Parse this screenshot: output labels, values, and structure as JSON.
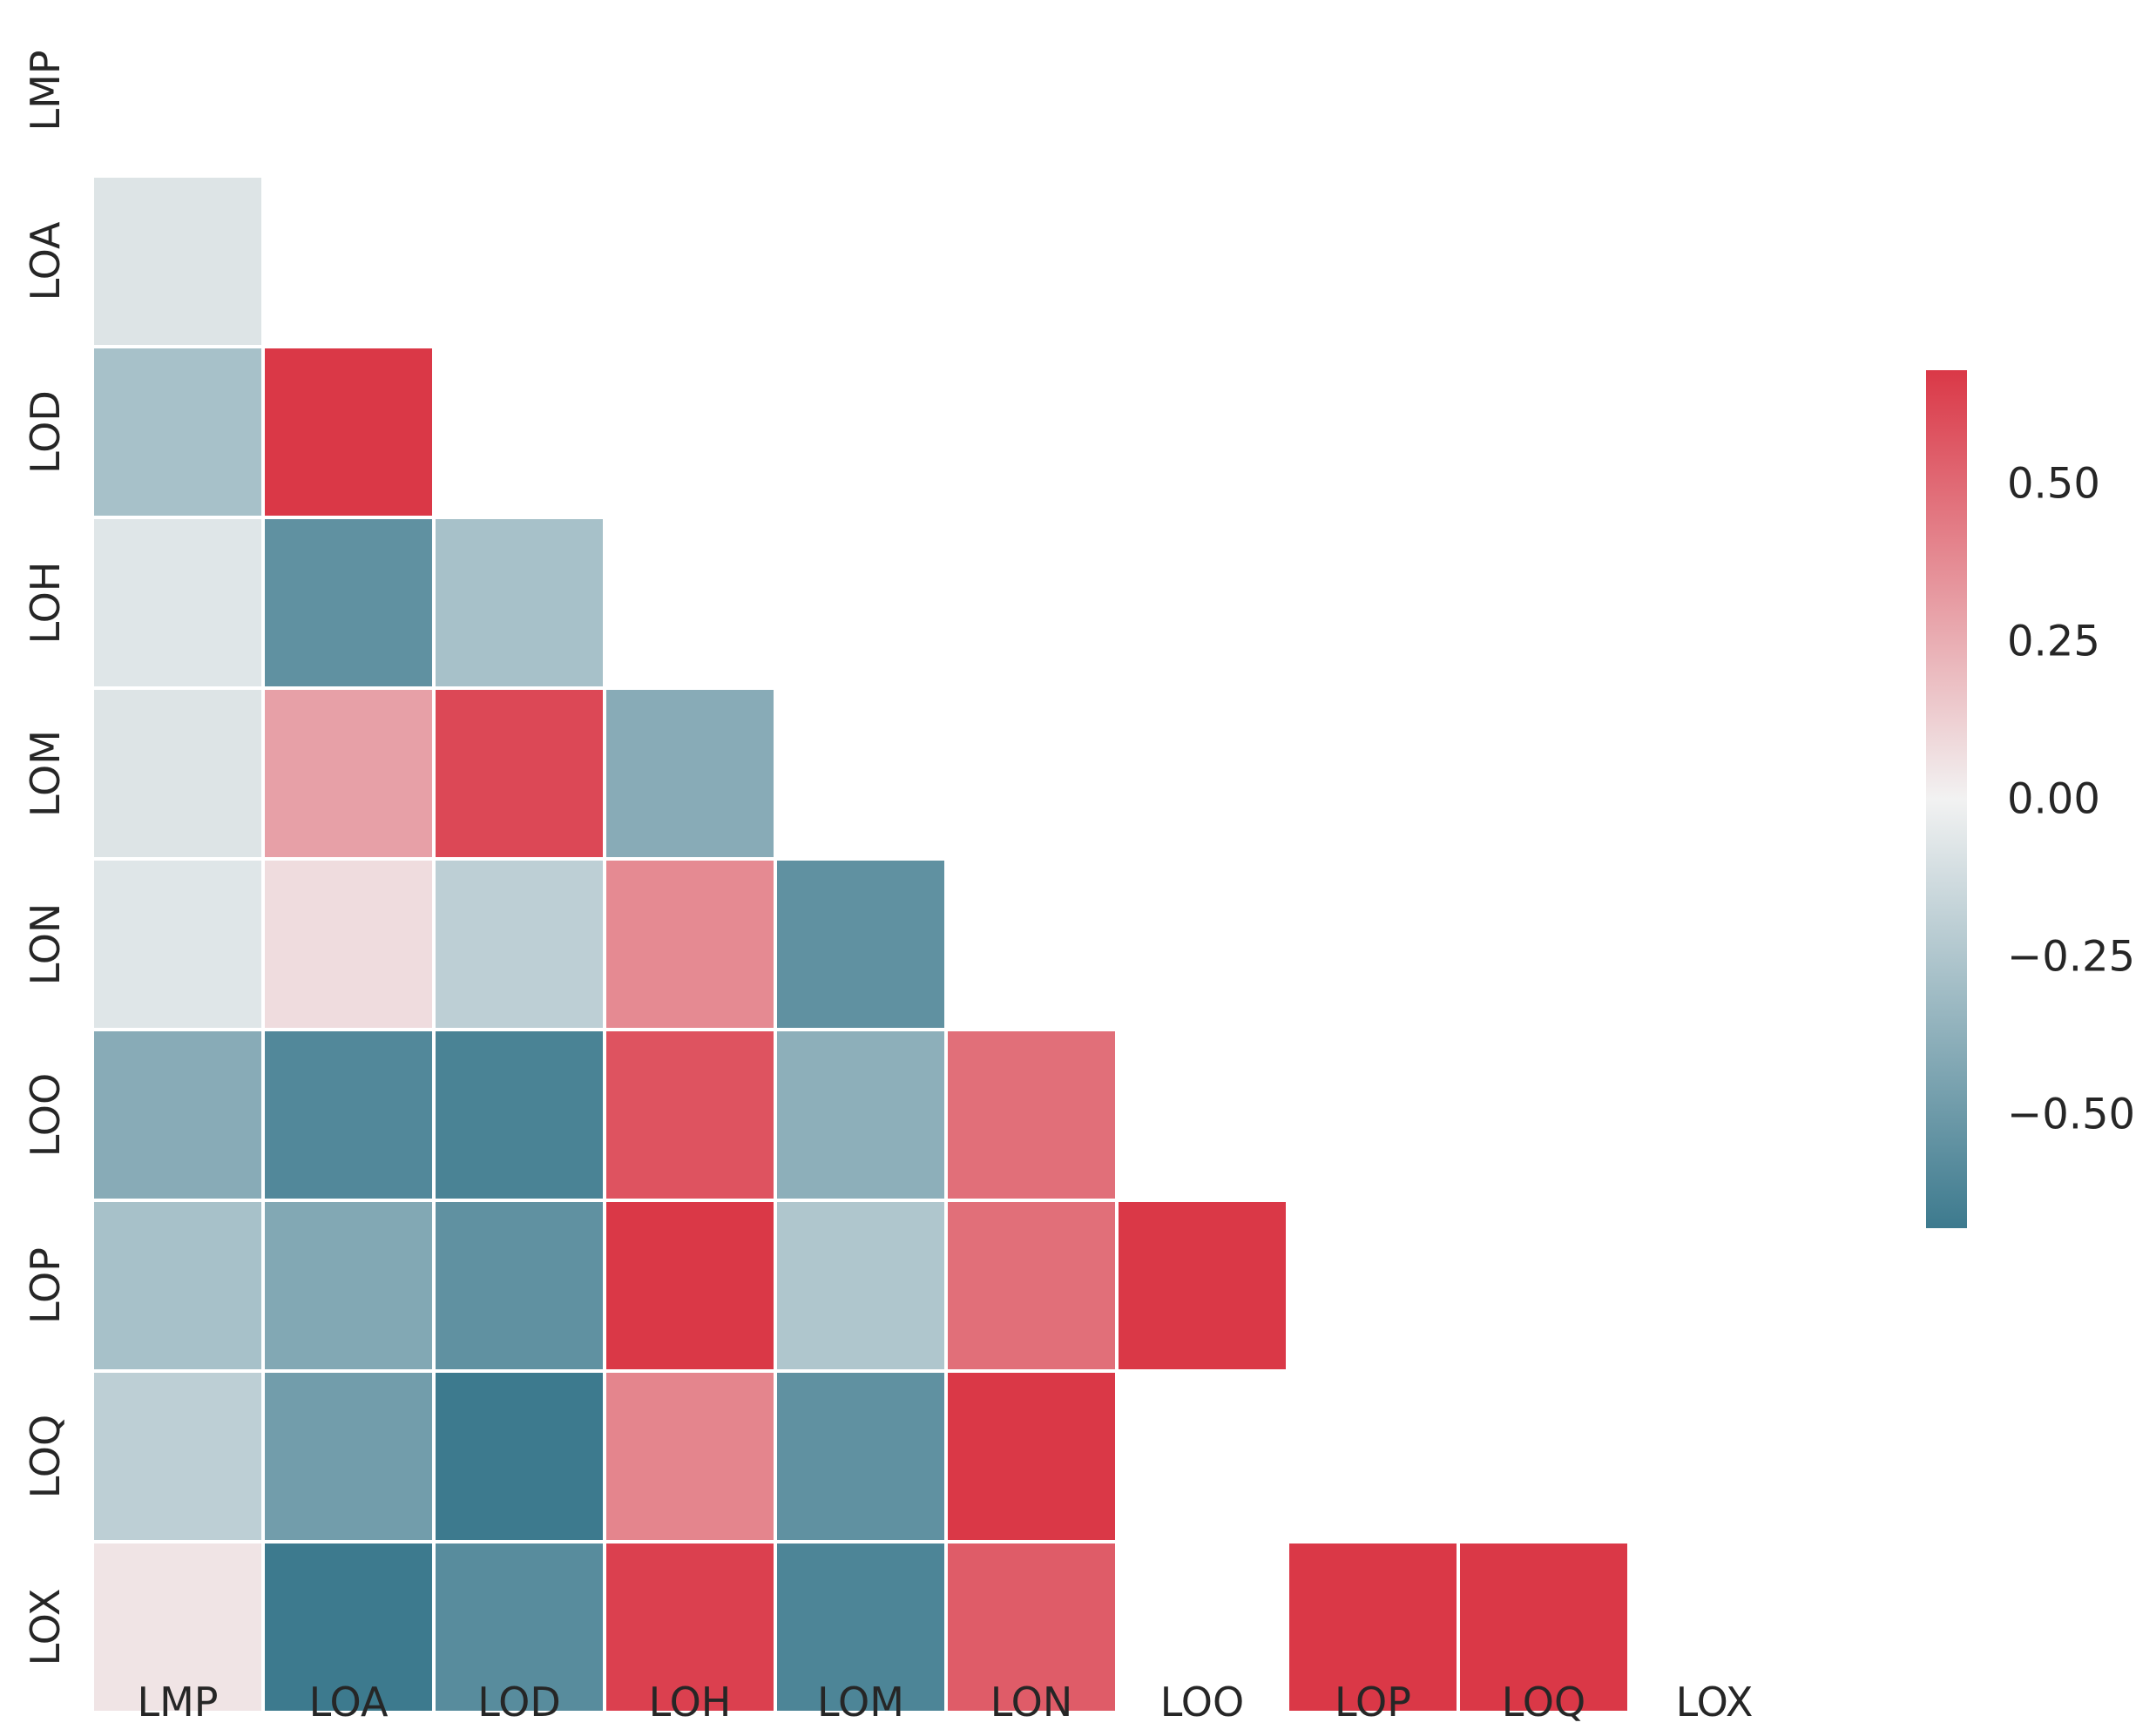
{
  "chart_data": {
    "type": "heatmap",
    "title": "",
    "labels": [
      "LMP",
      "LOA",
      "LOD",
      "LOH",
      "LOM",
      "LON",
      "LOO",
      "LOP",
      "LOQ",
      "LOX"
    ],
    "matrix": [
      [
        null,
        null,
        null,
        null,
        null,
        null,
        null,
        null,
        null,
        null
      ],
      [
        -0.08,
        null,
        null,
        null,
        null,
        null,
        null,
        null,
        null,
        null
      ],
      [
        -0.28,
        0.68,
        null,
        null,
        null,
        null,
        null,
        null,
        null,
        null
      ],
      [
        -0.07,
        -0.55,
        -0.28,
        null,
        null,
        null,
        null,
        null,
        null,
        null
      ],
      [
        -0.08,
        0.3,
        0.62,
        -0.4,
        null,
        null,
        null,
        null,
        null,
        null
      ],
      [
        -0.07,
        0.08,
        -0.2,
        0.38,
        -0.55,
        null,
        null,
        null,
        null,
        null
      ],
      [
        -0.4,
        -0.6,
        -0.63,
        0.58,
        -0.38,
        0.48,
        null,
        null,
        null,
        null
      ],
      [
        -0.28,
        -0.42,
        -0.55,
        0.68,
        -0.25,
        0.48,
        0.68,
        null,
        null,
        null
      ],
      [
        -0.2,
        -0.48,
        -0.72,
        0.4,
        -0.55,
        0.68,
        null,
        null,
        null,
        null
      ],
      [
        0.05,
        -0.72,
        -0.58,
        0.65,
        -0.62,
        0.55,
        null,
        0.68,
        0.68,
        null
      ]
    ],
    "colorbar": {
      "vmin": -0.68,
      "vmax": 0.68,
      "ticks": [
        0.5,
        0.25,
        0.0,
        -0.25,
        -0.5
      ],
      "tick_labels": [
        "0.50",
        "0.25",
        "0.00",
        "−0.25",
        "−0.50"
      ],
      "low_color": "#3d7a8e",
      "mid_color": "#f2f2f2",
      "high_color": "#da3847"
    }
  }
}
